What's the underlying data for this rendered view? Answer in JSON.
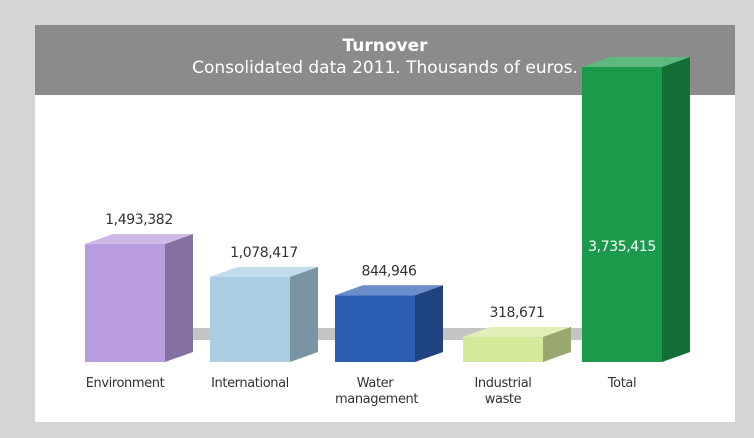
{
  "chart_data": {
    "type": "bar3d",
    "title": "Turnover",
    "subtitle": "Consolidated data 2011. Thousands of euros.",
    "categories": [
      "Environment",
      "International",
      "Water management",
      "Industrial waste",
      "Total"
    ],
    "values": [
      1493382,
      1078417,
      844946,
      318671,
      3735415
    ],
    "value_labels": [
      "1,493,382",
      "1,078,417",
      "844,946",
      "318,671",
      "3,735,415"
    ],
    "colors": [
      "#b99be0",
      "#a9cde3",
      "#2b5db3",
      "#d5e99b",
      "#1b9a4b"
    ]
  }
}
